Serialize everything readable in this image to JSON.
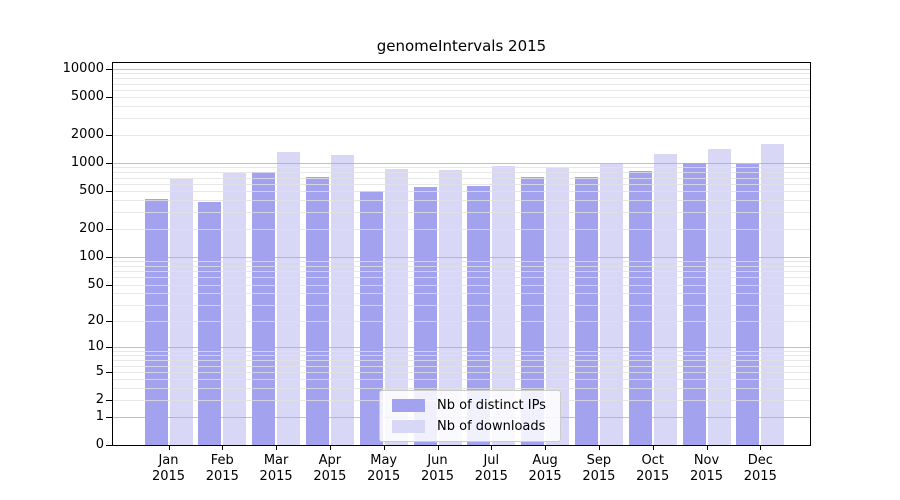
{
  "chart_data": {
    "type": "bar",
    "title": "genomeIntervals 2015",
    "categories": [
      "Jan",
      "Feb",
      "Mar",
      "Apr",
      "May",
      "Jun",
      "Jul",
      "Aug",
      "Sep",
      "Oct",
      "Nov",
      "Dec"
    ],
    "year_label": "2015",
    "series": [
      {
        "name": "Nb of distinct IPs",
        "color": "#a2a2ef",
        "values": [
          410,
          387,
          807,
          709,
          503,
          555,
          573,
          709,
          714,
          827,
          1000,
          969
        ]
      },
      {
        "name": "Nb of downloads",
        "color": "#d8d8f6",
        "values": [
          675,
          788,
          1318,
          1216,
          856,
          842,
          928,
          884,
          975,
          1255,
          1409,
          1604
        ]
      }
    ],
    "yticks": [
      0,
      1,
      2,
      5,
      10,
      20,
      50,
      100,
      200,
      500,
      1000,
      2000,
      5000,
      10000
    ],
    "xlabel": "",
    "ylabel": "",
    "y_scale": "log10(1+x)",
    "ylim": [
      0,
      11600
    ],
    "grid": true,
    "legend_position": "inside-bottom-center"
  },
  "colors": {
    "bar_distinct_ips": "#a2a2ef",
    "bar_downloads": "#d8d8f6",
    "grid_minor": "#e4e4e4",
    "grid_major": "#b4b4b4",
    "axis": "#000000",
    "background": "#ffffff"
  }
}
